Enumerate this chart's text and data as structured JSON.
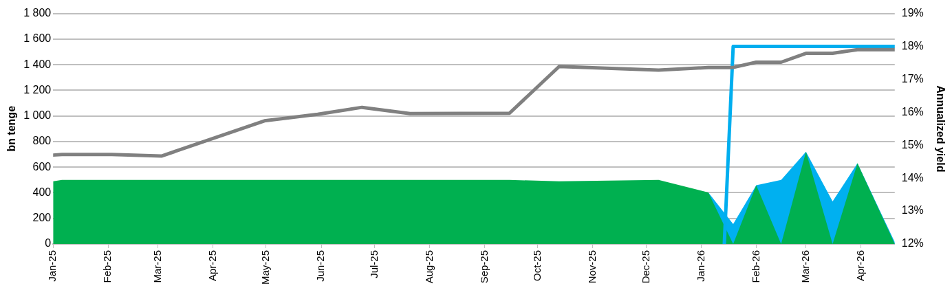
{
  "chart_data": {
    "type": "area",
    "ylabel": "bn tenge",
    "y2label": "Annualized yield",
    "x": [
      "2025-01-01",
      "2025-01-06",
      "2025-02-03",
      "2025-03-03",
      "2025-04-30",
      "2025-05-30",
      "2025-06-24",
      "2025-07-21",
      "2025-09-15",
      "2025-10-13",
      "2025-12-08",
      "2026-01-05",
      "2026-01-19",
      "2026-02-01",
      "2026-02-15",
      "2026-03-01",
      "2026-03-16",
      "2026-03-30",
      "2026-04-20"
    ],
    "series": [
      {
        "color": "#00b050",
        "values": [
          490,
          500,
          500,
          500,
          500,
          500,
          500,
          500,
          500,
          490,
          500,
          403,
          0,
          459,
          0,
          720,
          0,
          630,
          0
        ]
      },
      {
        "color": "#00b0f0",
        "values": [
          null,
          null,
          null,
          null,
          null,
          null,
          null,
          null,
          null,
          null,
          null,
          403,
          155,
          459,
          500,
          720,
          333,
          630,
          15
        ]
      },
      {
        "type": "line",
        "axis": "y2",
        "color": "#808080",
        "values": [
          14.7,
          14.72,
          14.72,
          14.67,
          15.74,
          15.94,
          16.15,
          15.96,
          15.97,
          17.39,
          17.28,
          17.36,
          17.36,
          17.52,
          17.52,
          17.79,
          17.79,
          17.9,
          17.9
        ]
      },
      {
        "type": "line",
        "axis": "y2",
        "color": "#00aeef",
        "x": [
          "2026-01-14",
          "2026-01-19",
          "2026-02-01",
          "2026-02-15",
          "2026-03-01",
          "2026-03-16",
          "2026-03-30",
          "2026-04-20"
        ],
        "values": [
          12,
          18,
          18,
          18,
          18,
          18,
          18,
          18
        ]
      }
    ],
    "xlim": [
      "2025-01-01",
      "2026-04-20"
    ],
    "xticks": [
      {
        "value": "2025-01-01",
        "label": "Jan-25"
      },
      {
        "value": "2025-02-01",
        "label": "Feb-25"
      },
      {
        "value": "2025-03-01",
        "label": "Mar-25"
      },
      {
        "value": "2025-04-01",
        "label": "Apr-25"
      },
      {
        "value": "2025-05-01",
        "label": "May-25"
      },
      {
        "value": "2025-06-01",
        "label": "Jun-25"
      },
      {
        "value": "2025-07-01",
        "label": "Jul-25"
      },
      {
        "value": "2025-08-01",
        "label": "Aug-25"
      },
      {
        "value": "2025-09-01",
        "label": "Sep-25"
      },
      {
        "value": "2025-10-01",
        "label": "Oct-25"
      },
      {
        "value": "2025-11-01",
        "label": "Nov-25"
      },
      {
        "value": "2025-12-01",
        "label": "Dec-25"
      },
      {
        "value": "2026-01-01",
        "label": "Jan-26"
      },
      {
        "value": "2026-02-01",
        "label": "Feb-26"
      },
      {
        "value": "2026-03-01",
        "label": "Mar-26"
      },
      {
        "value": "2026-04-01",
        "label": "Apr-26"
      }
    ],
    "ylim": [
      0,
      1800
    ],
    "yticks": [
      0,
      200,
      400,
      600,
      800,
      {
        "value": 1000,
        "label": "1 000"
      },
      {
        "value": 1200,
        "label": "1 200"
      },
      {
        "value": 1400,
        "label": "1 400"
      },
      {
        "value": 1600,
        "label": "1 600"
      },
      {
        "value": 1800,
        "label": "1 800"
      }
    ],
    "y2lim": [
      12,
      19
    ],
    "y2ticks": [
      {
        "value": 12,
        "label": "12%"
      },
      {
        "value": 13,
        "label": "13%"
      },
      {
        "value": 14,
        "label": "14%"
      },
      {
        "value": 15,
        "label": "15%"
      },
      {
        "value": 16,
        "label": "16%"
      },
      {
        "value": 17,
        "label": "17%"
      },
      {
        "value": 18,
        "label": "18%"
      },
      {
        "value": 19,
        "label": "19%"
      }
    ],
    "grid": "y",
    "legend": false,
    "marker": "none",
    "line_style": "solid"
  }
}
